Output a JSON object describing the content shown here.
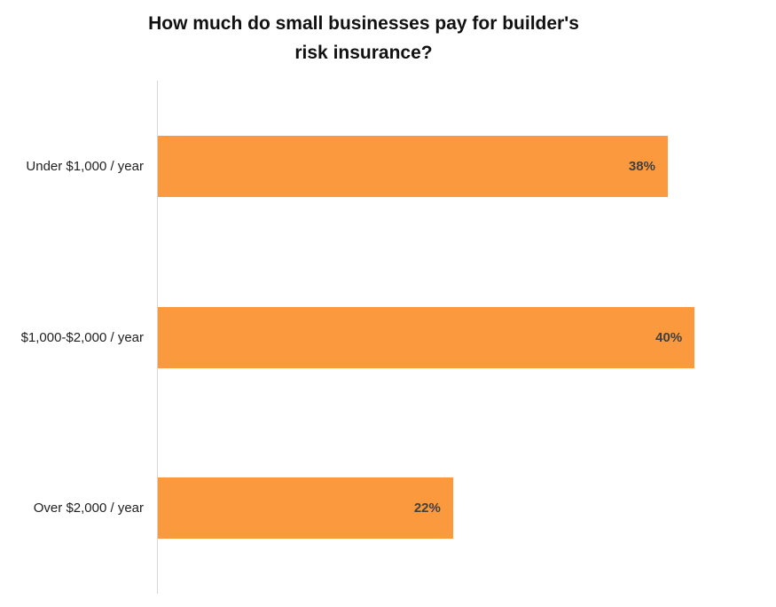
{
  "title": "How much do small businesses pay for builder's risk insurance?",
  "colors": {
    "bar": "#fb993e",
    "value_label": "#404040",
    "category_label": "#1f1f1f",
    "axis_line": "#d6d6d6",
    "title": "#111111",
    "background": "#ffffff"
  },
  "chart_data": {
    "type": "bar",
    "orientation": "horizontal",
    "title": "How much do small businesses pay for builder's risk insurance?",
    "categories": [
      "Under $1,000 / year",
      "$1,000-$2,000 / year",
      "Over $2,000 / year"
    ],
    "values": [
      38,
      40,
      22
    ],
    "value_labels": [
      "38%",
      "40%",
      "22%"
    ],
    "xlabel": "",
    "ylabel": "",
    "xlim": [
      0,
      46
    ],
    "grid": false,
    "legend": false,
    "value_labels_position": "inside-end",
    "bar_color": "#fb993e"
  }
}
